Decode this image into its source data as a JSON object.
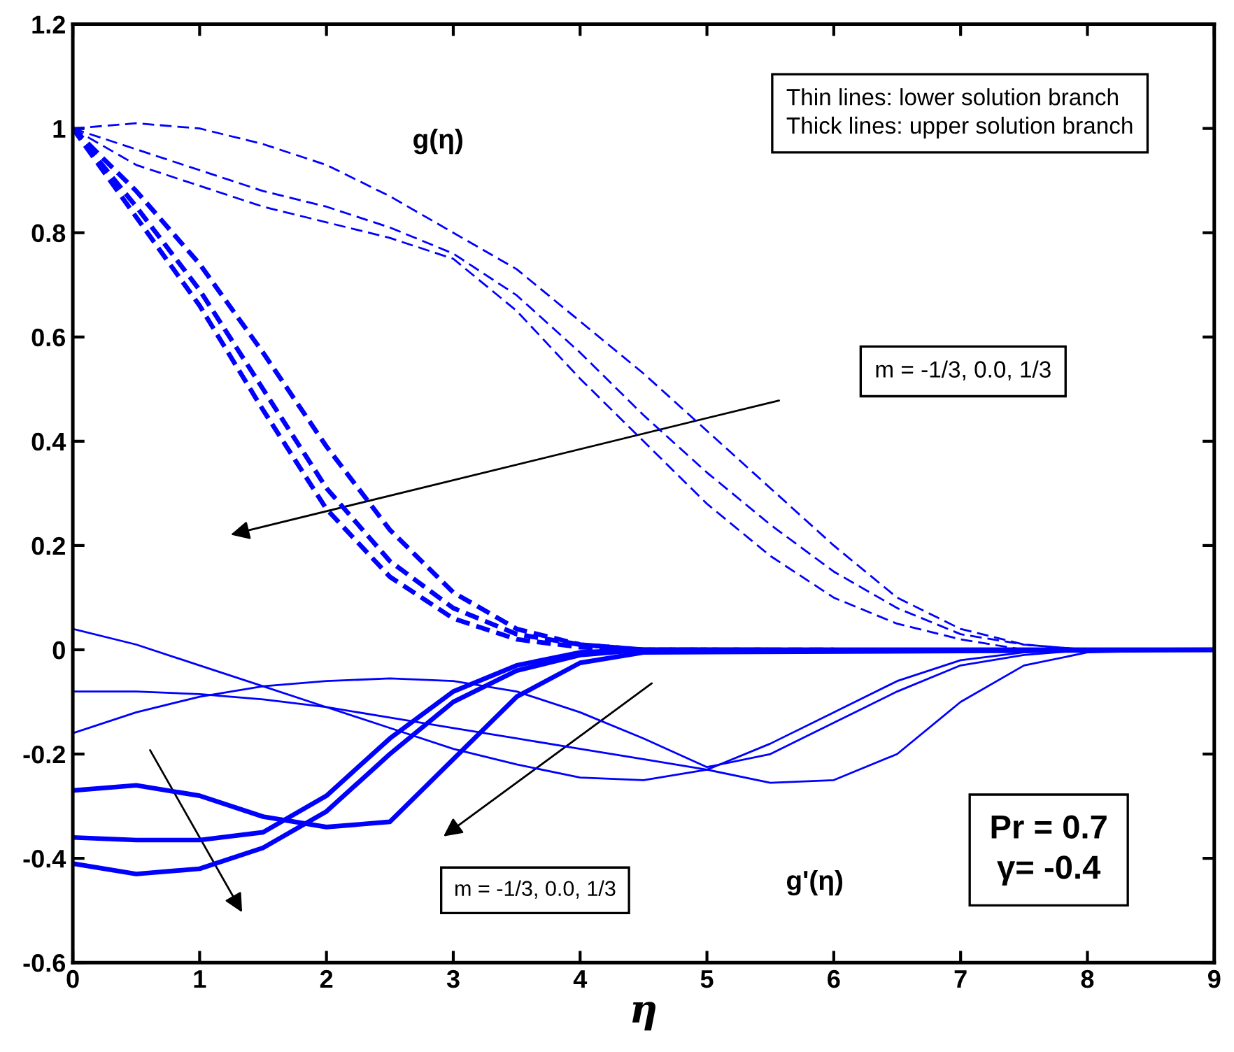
{
  "chart_data": {
    "type": "line",
    "xlabel": "η",
    "xlim": [
      0,
      9
    ],
    "ylim": [
      -0.6,
      1.2
    ],
    "xticks": [
      0,
      1,
      2,
      3,
      4,
      5,
      6,
      7,
      8,
      9
    ],
    "yticks": [
      -0.6,
      -0.4,
      -0.2,
      0,
      0.2,
      0.4,
      0.6,
      0.8,
      1,
      1.2
    ],
    "grid": false,
    "legend": false,
    "marker": "none",
    "annotations": [
      "Thin lines: lower solution branch\nThick lines: upper solution branch",
      "g(η)",
      "m = -1/3, 0.0, 1/3",
      "m = -1/3, 0.0, 1/3",
      "g'(η)",
      "Pr = 0.7\nγ= -0.4"
    ],
    "series": [
      {
        "color": "#0000ff",
        "line_style": "dashed",
        "x": [
          0,
          0.5,
          1,
          1.5,
          2,
          2.5,
          3,
          3.5,
          4,
          4.5,
          5,
          5.5,
          6,
          6.5,
          7,
          7.5,
          8,
          9
        ],
        "values": [
          1,
          1.01,
          1.0,
          0.97,
          0.93,
          0.87,
          0.8,
          0.73,
          0.63,
          0.53,
          0.42,
          0.31,
          0.2,
          0.1,
          0.04,
          0.01,
          0,
          0
        ]
      },
      {
        "color": "#0000ff",
        "line_style": "dashed",
        "x": [
          0,
          0.5,
          1,
          1.5,
          2,
          2.5,
          3,
          3.5,
          4,
          4.5,
          5,
          5.5,
          6,
          6.5,
          7,
          7.5,
          8,
          8.6
        ],
        "values": [
          1,
          0.96,
          0.92,
          0.88,
          0.85,
          0.81,
          0.76,
          0.68,
          0.57,
          0.45,
          0.34,
          0.24,
          0.15,
          0.08,
          0.03,
          0.01,
          0,
          0
        ]
      },
      {
        "color": "#0000ff",
        "line_style": "dashed",
        "x": [
          0,
          0.5,
          1,
          1.5,
          2,
          2.5,
          3,
          3.5,
          4,
          4.5,
          5,
          5.5,
          6,
          6.5,
          7,
          7.5,
          8,
          8.3
        ],
        "values": [
          1,
          0.93,
          0.89,
          0.85,
          0.82,
          0.79,
          0.75,
          0.65,
          0.52,
          0.4,
          0.28,
          0.18,
          0.1,
          0.05,
          0.02,
          0,
          0,
          0
        ]
      },
      {
        "color": "#0000ff",
        "line_style": "dashed",
        "x": [
          0,
          0.5,
          1,
          1.5,
          2,
          2.5,
          3,
          3.5,
          4,
          4.5,
          5
        ],
        "values": [
          1,
          0.88,
          0.74,
          0.57,
          0.39,
          0.23,
          0.11,
          0.04,
          0.01,
          0,
          0
        ]
      },
      {
        "color": "#0000ff",
        "line_style": "dashed",
        "x": [
          0,
          0.5,
          1,
          1.5,
          2,
          2.5,
          3,
          3.5,
          4,
          4.5,
          5.5
        ],
        "values": [
          1,
          0.85,
          0.69,
          0.5,
          0.31,
          0.17,
          0.08,
          0.03,
          0.01,
          0,
          0
        ]
      },
      {
        "color": "#0000ff",
        "line_style": "dashed",
        "x": [
          0,
          0.5,
          1,
          1.5,
          2,
          2.5,
          3,
          3.5,
          4,
          4.5,
          6
        ],
        "values": [
          1,
          0.83,
          0.66,
          0.46,
          0.27,
          0.14,
          0.06,
          0.02,
          0.005,
          0,
          0
        ]
      },
      {
        "color": "#0000ff",
        "line_style": "solid",
        "x": [
          0,
          0.5,
          1,
          1.5,
          2,
          2.5,
          3,
          3.5,
          4,
          4.5,
          5,
          5.5,
          6,
          6.5,
          7,
          7.5,
          8,
          9
        ],
        "values": [
          0.04,
          0.01,
          -0.03,
          -0.07,
          -0.11,
          -0.15,
          -0.19,
          -0.22,
          -0.245,
          -0.25,
          -0.23,
          -0.18,
          -0.12,
          -0.06,
          -0.02,
          -0.005,
          0,
          0
        ]
      },
      {
        "color": "#0000ff",
        "line_style": "solid",
        "x": [
          0,
          0.5,
          1,
          1.5,
          2,
          2.5,
          3,
          3.5,
          4,
          4.5,
          5,
          5.5,
          6,
          6.5,
          7,
          7.5,
          8,
          9
        ],
        "values": [
          -0.08,
          -0.08,
          -0.085,
          -0.095,
          -0.11,
          -0.13,
          -0.15,
          -0.17,
          -0.19,
          -0.21,
          -0.23,
          -0.255,
          -0.25,
          -0.2,
          -0.1,
          -0.03,
          -0.005,
          0
        ]
      },
      {
        "color": "#0000ff",
        "line_style": "solid",
        "x": [
          0,
          0.5,
          1,
          1.5,
          2,
          2.5,
          3,
          3.5,
          4,
          4.5,
          5,
          5.5,
          6,
          6.5,
          7,
          7.5,
          8,
          9
        ],
        "values": [
          -0.16,
          -0.12,
          -0.09,
          -0.07,
          -0.06,
          -0.055,
          -0.06,
          -0.08,
          -0.12,
          -0.17,
          -0.225,
          -0.2,
          -0.14,
          -0.08,
          -0.03,
          -0.01,
          0,
          0
        ]
      },
      {
        "color": "#0000ff",
        "line_style": "solid",
        "x": [
          0,
          0.5,
          1,
          1.5,
          2,
          2.5,
          3,
          3.5,
          4,
          4.5,
          9
        ],
        "values": [
          -0.27,
          -0.26,
          -0.28,
          -0.32,
          -0.34,
          -0.33,
          -0.21,
          -0.09,
          -0.025,
          -0.005,
          0
        ]
      },
      {
        "color": "#0000ff",
        "line_style": "solid",
        "x": [
          0,
          0.5,
          1,
          1.5,
          2,
          2.5,
          3,
          3.5,
          4,
          4.5,
          9
        ],
        "values": [
          -0.36,
          -0.365,
          -0.365,
          -0.35,
          -0.28,
          -0.17,
          -0.08,
          -0.03,
          -0.005,
          0,
          0
        ]
      },
      {
        "color": "#0000ff",
        "line_style": "solid",
        "x": [
          0,
          0.5,
          1,
          1.5,
          2,
          2.5,
          3,
          3.5,
          4,
          4.5,
          9
        ],
        "values": [
          -0.41,
          -0.43,
          -0.42,
          -0.38,
          -0.31,
          -0.2,
          -0.1,
          -0.04,
          -0.01,
          0,
          0
        ]
      }
    ]
  }
}
